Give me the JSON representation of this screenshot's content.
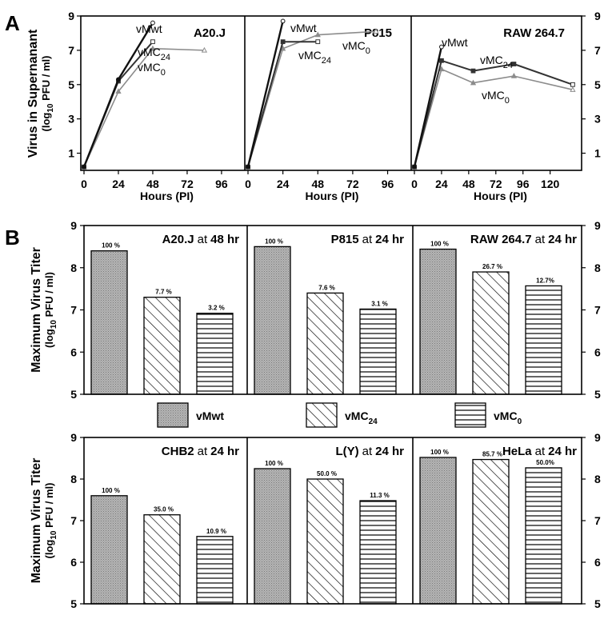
{
  "figure": {
    "panel_a_label": "A",
    "panel_b_label": "B"
  },
  "colors": {
    "vMwt": "#111111",
    "vMC24": "#333333",
    "vMC0": "#8c8c8c",
    "stipple": "#a6a6a6"
  },
  "chart_data": [
    {
      "type": "line",
      "panel": "A",
      "ylabel": "Virus in Supernanant",
      "ylabel_units": [
        "(log",
        "10",
        " PFU / ml)"
      ],
      "ylim": [
        0,
        9
      ],
      "yticks": [
        1,
        3,
        5,
        7,
        9
      ],
      "xlabel": "Hours (PI)",
      "subplots": [
        {
          "title": "A20.J",
          "xlim": [
            0,
            110
          ],
          "xticks": [
            0,
            24,
            48,
            72,
            96
          ],
          "series": [
            {
              "name": "vMwt",
              "sub": "",
              "x": [
                0,
                24,
                48
              ],
              "y": [
                0.2,
                5.3,
                8.6
              ]
            },
            {
              "name": "vMC",
              "sub": "24",
              "x": [
                0,
                24,
                48
              ],
              "y": [
                0.2,
                5.2,
                7.5
              ]
            },
            {
              "name": "vMC",
              "sub": "0",
              "x": [
                0,
                24,
                48,
                84
              ],
              "y": [
                0.2,
                4.6,
                7.1,
                7.0
              ]
            }
          ]
        },
        {
          "title": "P815",
          "xlim": [
            0,
            110
          ],
          "xticks": [
            0,
            24,
            48,
            72,
            96
          ],
          "series": [
            {
              "name": "vMwt",
              "sub": "",
              "x": [
                0,
                24
              ],
              "y": [
                0.2,
                8.7
              ]
            },
            {
              "name": "vMC",
              "sub": "24",
              "x": [
                0,
                24,
                48
              ],
              "y": [
                0.2,
                7.5,
                7.5
              ]
            },
            {
              "name": "vMC",
              "sub": "0",
              "x": [
                0,
                24,
                48,
                88
              ],
              "y": [
                0.2,
                7.1,
                7.9,
                8.1
              ]
            }
          ]
        },
        {
          "title": "RAW 264.7",
          "xlim": [
            0,
            145
          ],
          "xticks": [
            0,
            24,
            48,
            72,
            96,
            120
          ],
          "series": [
            {
              "name": "vMwt",
              "sub": "",
              "x": [
                0,
                24
              ],
              "y": [
                0.2,
                7.2
              ]
            },
            {
              "name": "vMC",
              "sub": "24",
              "x": [
                0,
                24,
                52,
                88,
                140
              ],
              "y": [
                0.2,
                6.4,
                5.8,
                6.2,
                5.0
              ]
            },
            {
              "name": "vMC",
              "sub": "0",
              "x": [
                0,
                24,
                52,
                88,
                140
              ],
              "y": [
                0.2,
                5.9,
                5.1,
                5.5,
                4.7
              ]
            }
          ]
        }
      ]
    },
    {
      "type": "bar",
      "panel": "B",
      "ylabel": "Maximum Virus Titer",
      "ylabel_units": [
        "(log",
        "10",
        " PFU / ml)"
      ],
      "ylim": [
        5,
        9
      ],
      "yticks": [
        5,
        6,
        7,
        8,
        9
      ],
      "legend": [
        {
          "name": "vMwt",
          "sub": "",
          "pattern": "stipple"
        },
        {
          "name": "vMC",
          "sub": "24",
          "pattern": "diagonal"
        },
        {
          "name": "vMC",
          "sub": "0",
          "pattern": "horizontal"
        }
      ],
      "rows": [
        [
          {
            "cell": "A20.J",
            "at": "at",
            "time": "48 hr",
            "values": [
              8.4,
              7.3,
              6.92
            ],
            "labels": [
              "100 %",
              "7.7 %",
              "3.2 %"
            ]
          },
          {
            "cell": "P815",
            "at": "at",
            "time": "24 hr",
            "values": [
              8.5,
              7.4,
              7.02
            ],
            "labels": [
              "100 %",
              "7.6 %",
              "3.1 %"
            ]
          },
          {
            "cell": "RAW 264.7",
            "at": "at",
            "time": "24 hr",
            "values": [
              8.44,
              7.9,
              7.57
            ],
            "labels": [
              "100 %",
              "26.7 %",
              "12.7%"
            ]
          }
        ],
        [
          {
            "cell": "CHB2",
            "at": "at",
            "time": "24 hr",
            "values": [
              7.6,
              7.14,
              6.62
            ],
            "labels": [
              "100 %",
              "35.0 %",
              "10.9 %"
            ]
          },
          {
            "cell": "L(Y)",
            "at": "at",
            "time": "24 hr",
            "values": [
              8.25,
              8.0,
              7.48
            ],
            "labels": [
              "100 %",
              "50.0 %",
              "11.3 %"
            ]
          },
          {
            "cell": "HeLa",
            "at": "at",
            "time": "24 hr",
            "values": [
              8.52,
              8.47,
              8.27
            ],
            "labels": [
              "100 %",
              "85.7 %",
              "50.0%"
            ]
          }
        ]
      ]
    }
  ]
}
